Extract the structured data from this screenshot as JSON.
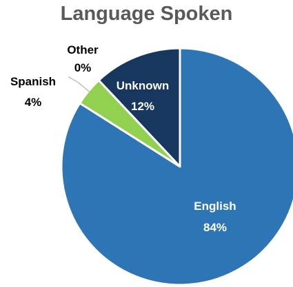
{
  "chart_data": {
    "type": "pie",
    "title": "Language Spoken",
    "slices": [
      {
        "label": "English",
        "value": 84,
        "display": "84%",
        "color": "#2E75B6"
      },
      {
        "label": "Other",
        "value": 0,
        "display": "0%",
        "color": "#A5A5A5"
      },
      {
        "label": "Spanish",
        "value": 4,
        "display": "4%",
        "color": "#92D050"
      },
      {
        "label": "Unknown",
        "value": 12,
        "display": "12%",
        "color": "#17375E"
      }
    ],
    "legend": "none"
  }
}
